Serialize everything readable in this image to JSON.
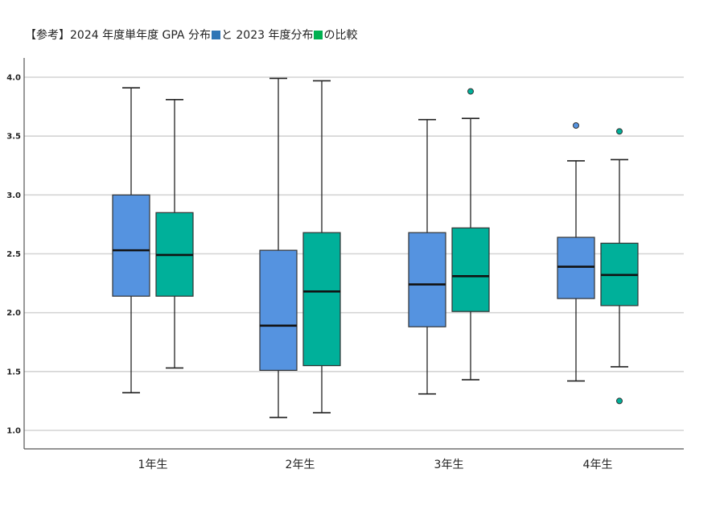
{
  "title": {
    "part1": "【参考】2024 年度単年度 GPA 分布",
    "part2": "と 2023 年度分布",
    "part3": "の比較"
  },
  "chart_data": {
    "type": "boxplot",
    "categories": [
      "1年生",
      "2年生",
      "3年生",
      "4年生"
    ],
    "ylim": [
      1.0,
      4.0
    ],
    "yticks": [
      "1.0",
      "1.5",
      "2.0",
      "2.5",
      "3.0",
      "3.5",
      "4.0"
    ],
    "grid": true,
    "series": [
      {
        "year": "2024",
        "color": "#5593e0",
        "boxes": [
          {
            "min": 1.32,
            "q1": 2.14,
            "median": 2.53,
            "q3": 3.0,
            "max": 3.91,
            "outliers": []
          },
          {
            "min": 1.11,
            "q1": 1.51,
            "median": 1.89,
            "q3": 2.53,
            "max": 3.99,
            "outliers": []
          },
          {
            "min": 1.31,
            "q1": 1.88,
            "median": 2.24,
            "q3": 2.68,
            "max": 3.64,
            "outliers": []
          },
          {
            "min": 1.42,
            "q1": 2.12,
            "median": 2.39,
            "q3": 2.64,
            "max": 3.29,
            "outliers": [
              3.59
            ]
          }
        ]
      },
      {
        "year": "2023",
        "color": "#00b09a",
        "boxes": [
          {
            "min": 1.53,
            "q1": 2.14,
            "median": 2.49,
            "q3": 2.85,
            "max": 3.81,
            "outliers": []
          },
          {
            "min": 1.15,
            "q1": 1.55,
            "median": 2.18,
            "q3": 2.68,
            "max": 3.97,
            "outliers": []
          },
          {
            "min": 1.43,
            "q1": 2.01,
            "median": 2.31,
            "q3": 2.72,
            "max": 3.65,
            "outliers": [
              3.88
            ]
          },
          {
            "min": 1.54,
            "q1": 2.06,
            "median": 2.32,
            "q3": 2.59,
            "max": 3.3,
            "outliers": [
              3.54,
              1.25
            ]
          }
        ]
      }
    ]
  }
}
